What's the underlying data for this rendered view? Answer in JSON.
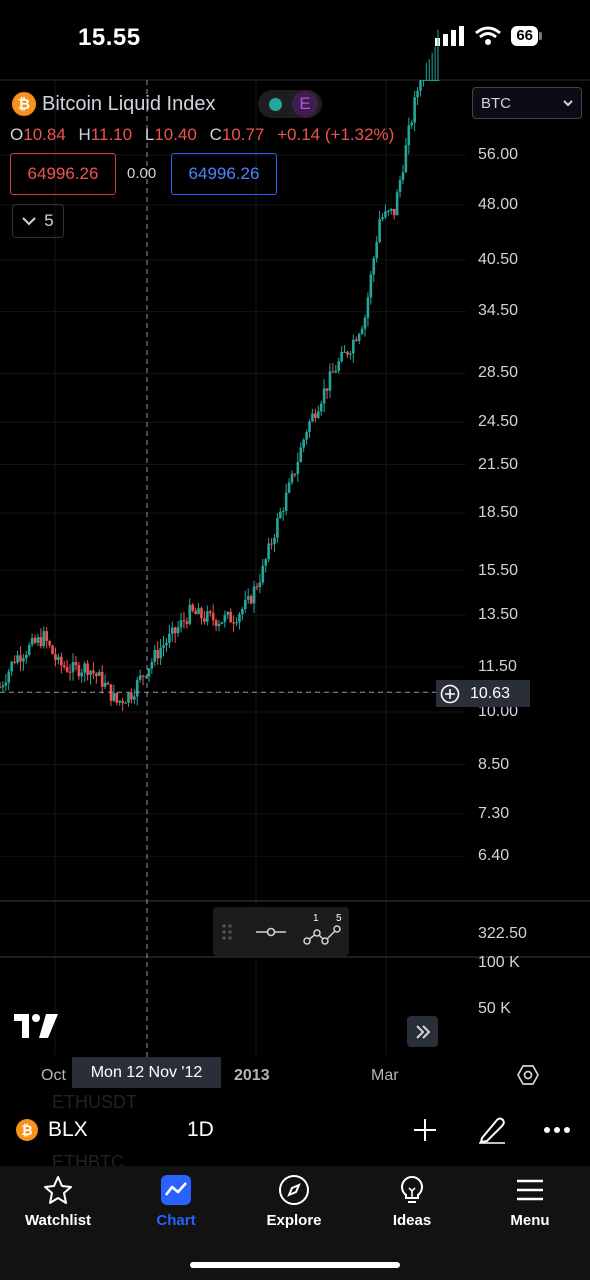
{
  "status_bar": {
    "time": "15.55",
    "battery": "66"
  },
  "chart_header": {
    "symbol_title": "Bitcoin Liquid Index",
    "exchange_badge": "E",
    "ohlc": {
      "o_label": "O",
      "o": "10.84",
      "h_label": "H",
      "h": "11.10",
      "l_label": "L",
      "l": "10.40",
      "c_label": "C",
      "c": "10.77",
      "change": "+0.14 (+1.32%)"
    },
    "sell_price": "64996.26",
    "spread": "0.00",
    "buy_price": "64996.26",
    "indicators_count": "5",
    "currency": "BTC"
  },
  "price_axis": {
    "labels": [
      "56.00",
      "48.00",
      "40.50",
      "34.50",
      "28.50",
      "24.50",
      "21.50",
      "18.50",
      "15.50",
      "13.50",
      "11.50",
      "10.00",
      "8.50",
      "7.30",
      "6.40"
    ],
    "current_price": "10.63"
  },
  "volume_axis": {
    "labels": [
      "322.50",
      "100 K",
      "50 K"
    ]
  },
  "time_axis": {
    "labels": [
      "Oct",
      "2013",
      "Mar"
    ],
    "crosshair_date": "Mon 12 Nov '12"
  },
  "line_tools": {
    "left_label": "1",
    "right_label": "5"
  },
  "toolbar": {
    "symbol": "BLX",
    "interval": "1D",
    "ghost_above": "ETHUSDT",
    "ghost_below": "ETHBTC"
  },
  "tabs": [
    {
      "label": "Watchlist",
      "icon": "star-icon"
    },
    {
      "label": "Chart",
      "icon": "chart-icon"
    },
    {
      "label": "Explore",
      "icon": "compass-icon"
    },
    {
      "label": "Ideas",
      "icon": "lightbulb-icon"
    },
    {
      "label": "Menu",
      "icon": "menu-icon"
    }
  ],
  "chart_data": {
    "type": "candlestick",
    "title": "Bitcoin Liquid Index",
    "yscale": "log",
    "x_labels": [
      "Oct",
      "2013",
      "Mar"
    ],
    "x": [
      "2012-09-08",
      "2012-09-15",
      "2012-09-22",
      "2012-09-29",
      "2012-10-06",
      "2012-10-13",
      "2012-10-20",
      "2012-10-27",
      "2012-11-03",
      "2012-11-10",
      "2012-11-17",
      "2012-11-24",
      "2012-12-01",
      "2012-12-08",
      "2012-12-15",
      "2012-12-22",
      "2012-12-29",
      "2013-01-05",
      "2013-01-12",
      "2013-01-19",
      "2013-01-26",
      "2013-02-02",
      "2013-02-09",
      "2013-02-16",
      "2013-02-23",
      "2013-03-02",
      "2013-03-09",
      "2013-03-16",
      "2013-03-23",
      "2013-03-30",
      "2013-04-06"
    ],
    "close": [
      10.8,
      11.8,
      12.2,
      12.6,
      11.6,
      11.4,
      11.5,
      11.0,
      10.3,
      10.6,
      11.4,
      12.2,
      12.8,
      13.6,
      13.4,
      13.3,
      13.4,
      14.0,
      15.5,
      18.0,
      20.5,
      24.0,
      26.5,
      29.0,
      31.0,
      34.0,
      46.0,
      47.0,
      60.0,
      75.0,
      88.0
    ],
    "ylim": [
      6.4,
      60.0
    ]
  }
}
